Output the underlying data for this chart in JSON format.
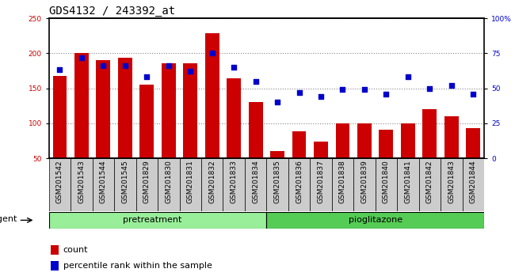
{
  "title": "GDS4132 / 243392_at",
  "categories": [
    "GSM201542",
    "GSM201543",
    "GSM201544",
    "GSM201545",
    "GSM201829",
    "GSM201830",
    "GSM201831",
    "GSM201832",
    "GSM201833",
    "GSM201834",
    "GSM201835",
    "GSM201836",
    "GSM201837",
    "GSM201838",
    "GSM201839",
    "GSM201840",
    "GSM201841",
    "GSM201842",
    "GSM201843",
    "GSM201844"
  ],
  "counts": [
    168,
    200,
    190,
    193,
    155,
    186,
    186,
    228,
    164,
    130,
    60,
    88,
    74,
    100,
    100,
    91,
    100,
    120,
    110,
    93
  ],
  "percentile": [
    63,
    72,
    66,
    66,
    58,
    66,
    62,
    75,
    65,
    55,
    40,
    47,
    44,
    49,
    49,
    46,
    58,
    50,
    52,
    46
  ],
  "bar_color": "#cc0000",
  "dot_color": "#0000cc",
  "pretreatment_count": 10,
  "group_labels": [
    "pretreatment",
    "pioglitazone"
  ],
  "group_color_pre": "#99ee99",
  "group_color_pio": "#55cc55",
  "ylim_left": [
    50,
    250
  ],
  "ylim_right": [
    0,
    100
  ],
  "yticks_left": [
    50,
    100,
    150,
    200,
    250
  ],
  "yticks_right": [
    0,
    25,
    50,
    75,
    100
  ],
  "ytick_labels_right": [
    "0",
    "25",
    "50",
    "75",
    "100%"
  ],
  "grid_color": "#888888",
  "plot_bg": "#ffffff",
  "tick_area_bg": "#cccccc",
  "agent_label": "agent",
  "legend_count": "count",
  "legend_pct": "percentile rank within the sample",
  "title_fontsize": 10,
  "tick_fontsize": 6.5,
  "label_fontsize": 8,
  "group_label_fontsize": 8
}
